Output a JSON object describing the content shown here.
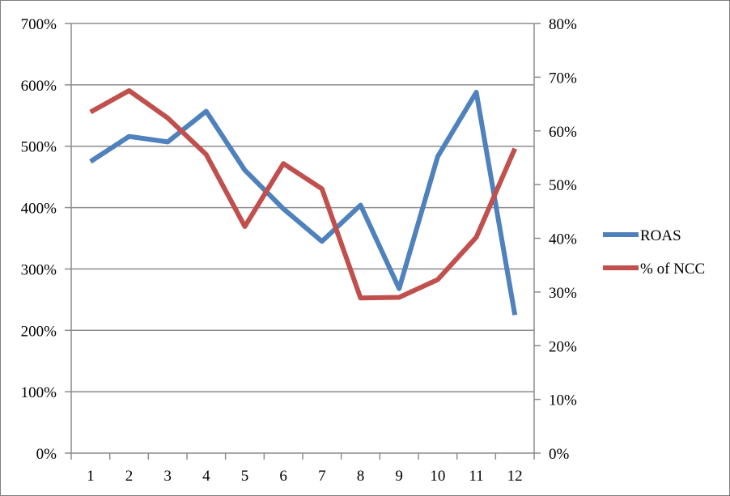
{
  "chart_data": {
    "type": "line",
    "title": "",
    "xlabel": "",
    "ylabel": "",
    "categories": [
      "1",
      "2",
      "3",
      "4",
      "5",
      "6",
      "7",
      "8",
      "9",
      "10",
      "11",
      "12"
    ],
    "y_left": {
      "min": 0,
      "max": 700,
      "ticks": [
        0,
        100,
        200,
        300,
        400,
        500,
        600,
        700
      ],
      "tick_labels": [
        "0%",
        "100%",
        "200%",
        "300%",
        "400%",
        "500%",
        "600%",
        "700%"
      ]
    },
    "y_right": {
      "min": 0,
      "max": 80,
      "ticks": [
        0,
        10,
        20,
        30,
        40,
        50,
        60,
        70,
        80
      ],
      "tick_labels": [
        "0%",
        "10%",
        "20%",
        "30%",
        "40%",
        "50%",
        "60%",
        "70%",
        "80%"
      ]
    },
    "grid": true,
    "legend": "right",
    "series": [
      {
        "name": "ROAS",
        "axis": "left",
        "color": "#4f81bd",
        "values": [
          475,
          516,
          507,
          557,
          461,
          398,
          345,
          404,
          268,
          483,
          588,
          225
        ]
      },
      {
        "name": "% of NCC",
        "axis": "right",
        "color": "#c0504d",
        "values": [
          63.5,
          67.5,
          62.4,
          55.6,
          42.2,
          53.9,
          49.2,
          28.9,
          29.0,
          32.3,
          40.2,
          56.7
        ]
      }
    ]
  }
}
